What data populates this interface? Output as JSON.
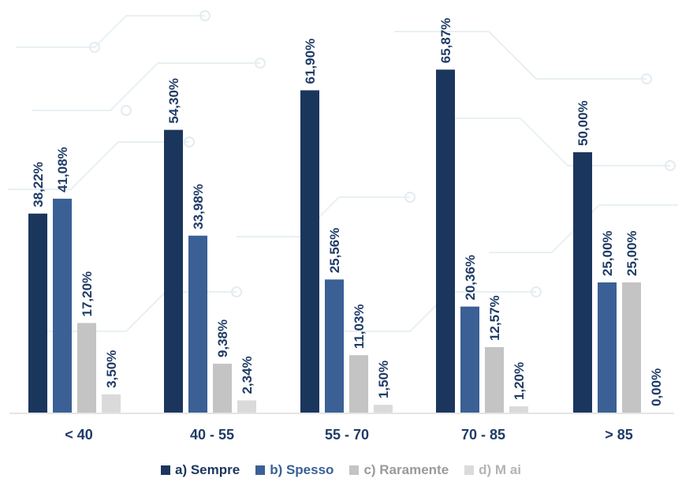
{
  "chart_data": {
    "type": "bar",
    "title": "",
    "xlabel": "",
    "ylabel": "",
    "ylim": [
      0,
      70
    ],
    "grid": false,
    "legend_position": "bottom",
    "categories": [
      "< 40",
      "40 - 55",
      "55 - 70",
      "70 - 85",
      "> 85"
    ],
    "series": [
      {
        "name": "a) Sempre",
        "color": "#1b365d",
        "values": [
          38.22,
          54.3,
          61.9,
          65.87,
          50.0
        ],
        "labels": [
          "38,22%",
          "54,30%",
          "61,90%",
          "65,87%",
          "50,00%"
        ]
      },
      {
        "name": "b) Spesso",
        "color": "#3a6095",
        "values": [
          41.08,
          33.98,
          25.56,
          20.36,
          25.0
        ],
        "labels": [
          "41,08%",
          "33,98%",
          "25,56%",
          "20,36%",
          "25,00%"
        ]
      },
      {
        "name": "c) Raramente",
        "color": "#c4c4c4",
        "values": [
          17.2,
          9.38,
          11.03,
          12.57,
          25.0
        ],
        "labels": [
          "17,20%",
          "9,38%",
          "11,03%",
          "12,57%",
          "25,00%"
        ]
      },
      {
        "name": "d) M ai",
        "color": "#dadada",
        "values": [
          3.5,
          2.34,
          1.5,
          1.2,
          0.0
        ],
        "labels": [
          "3,50%",
          "2,34%",
          "1,50%",
          "1,20%",
          "0,00%"
        ]
      }
    ]
  }
}
